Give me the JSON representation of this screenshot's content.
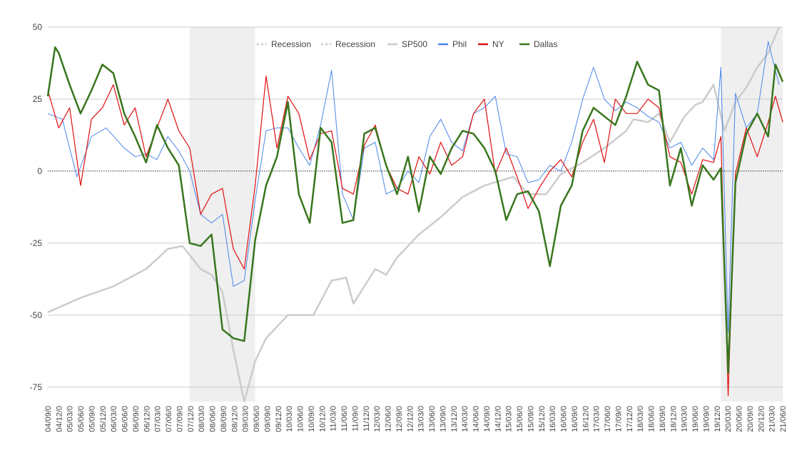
{
  "chart_data": {
    "type": "line",
    "title": "",
    "xlabel": "",
    "ylabel": "",
    "ylim": [
      -80,
      50
    ],
    "y_ticks": [
      50,
      25,
      0,
      -25,
      -50,
      -75
    ],
    "y_tick_labels": [
      "50",
      "25",
      "0",
      "-25",
      "-50",
      "-75"
    ],
    "grid": true,
    "legend_position": "top-right",
    "zero_line": "dotted",
    "x_start": "2004-09",
    "x_end": "2021-07",
    "x_tick_labels": [
      "04/09/0",
      "04/12/0",
      "05/03/0",
      "05/06/0",
      "05/09/0",
      "05/12/0",
      "06/03/0",
      "06/06/0",
      "06/09/0",
      "06/12/0",
      "07/03/0",
      "07/06/0",
      "07/09/0",
      "07/12/0",
      "08/03/0",
      "08/06/0",
      "08/09/0",
      "08/12/0",
      "09/03/0",
      "09/06/0",
      "09/09/0",
      "09/12/0",
      "10/03/0",
      "10/06/0",
      "10/09/0",
      "10/12/0",
      "11/03/0",
      "11/06/0",
      "11/09/0",
      "11/12/0",
      "12/03/0",
      "12/06/0",
      "12/09/0",
      "12/12/0",
      "13/03/0",
      "13/06/0",
      "13/09/0",
      "13/12/0",
      "14/03/0",
      "14/06/0",
      "14/09/0",
      "14/12/0",
      "15/03/0",
      "15/06/0",
      "15/09/0",
      "15/12/0",
      "16/03/0",
      "16/06/0",
      "16/09/0",
      "16/12/0",
      "17/03/0",
      "17/06/0",
      "17/09/0",
      "17/12/0",
      "18/03/0",
      "18/06/0",
      "18/09/0",
      "18/12/0",
      "19/03/0",
      "19/06/0",
      "19/09/0",
      "19/12/0",
      "20/03/0",
      "20/06/0",
      "20/09/0",
      "20/12/0",
      "21/03/0",
      "21/06/0"
    ],
    "recessions": [
      {
        "name": "Recession",
        "start": "2007-12",
        "end": "2009-06"
      },
      {
        "name": "Recession",
        "start": "2020-02",
        "end": "2021-07"
      }
    ],
    "series": [
      {
        "name": "SP500",
        "color": "#cccccc",
        "width": 2.5,
        "points": [
          [
            "2004-09",
            -49
          ],
          [
            "2005-06",
            -44
          ],
          [
            "2006-03",
            -40
          ],
          [
            "2006-12",
            -34
          ],
          [
            "2007-06",
            -27
          ],
          [
            "2007-10",
            -26
          ],
          [
            "2008-03",
            -34
          ],
          [
            "2008-06",
            -36
          ],
          [
            "2008-09",
            -42
          ],
          [
            "2008-12",
            -62
          ],
          [
            "2009-03",
            -80
          ],
          [
            "2009-06",
            -66
          ],
          [
            "2009-09",
            -58
          ],
          [
            "2010-03",
            -50
          ],
          [
            "2010-06",
            -50
          ],
          [
            "2010-10",
            -50
          ],
          [
            "2011-03",
            -38
          ],
          [
            "2011-07",
            -37
          ],
          [
            "2011-09",
            -46
          ],
          [
            "2012-03",
            -34
          ],
          [
            "2012-06",
            -36
          ],
          [
            "2012-09",
            -30
          ],
          [
            "2013-03",
            -22
          ],
          [
            "2013-09",
            -16
          ],
          [
            "2014-03",
            -9
          ],
          [
            "2014-09",
            -5
          ],
          [
            "2015-05",
            -2
          ],
          [
            "2015-09",
            -8
          ],
          [
            "2016-02",
            -8
          ],
          [
            "2016-06",
            -1
          ],
          [
            "2016-12",
            3
          ],
          [
            "2017-06",
            8
          ],
          [
            "2017-12",
            14
          ],
          [
            "2018-02",
            18
          ],
          [
            "2018-06",
            17
          ],
          [
            "2018-09",
            20
          ],
          [
            "2018-12",
            10
          ],
          [
            "2019-04",
            19
          ],
          [
            "2019-07",
            23
          ],
          [
            "2019-09",
            24
          ],
          [
            "2019-12",
            30
          ],
          [
            "2020-03",
            14
          ],
          [
            "2020-06",
            24
          ],
          [
            "2020-09",
            29
          ],
          [
            "2020-12",
            36
          ],
          [
            "2021-03",
            41
          ],
          [
            "2021-06",
            50
          ]
        ]
      },
      {
        "name": "Phil",
        "color": "#4a86e8",
        "width": 1,
        "points": [
          [
            "2004-09",
            20
          ],
          [
            "2005-01",
            18
          ],
          [
            "2005-05",
            -2
          ],
          [
            "2005-09",
            12
          ],
          [
            "2006-01",
            15
          ],
          [
            "2006-06",
            8
          ],
          [
            "2006-09",
            5
          ],
          [
            "2006-12",
            6
          ],
          [
            "2007-03",
            4
          ],
          [
            "2007-06",
            12
          ],
          [
            "2007-09",
            7
          ],
          [
            "2007-12",
            0
          ],
          [
            "2008-03",
            -15
          ],
          [
            "2008-06",
            -18
          ],
          [
            "2008-09",
            -15
          ],
          [
            "2008-12",
            -40
          ],
          [
            "2009-03",
            -38
          ],
          [
            "2009-06",
            -10
          ],
          [
            "2009-09",
            14
          ],
          [
            "2009-12",
            15
          ],
          [
            "2010-03",
            15
          ],
          [
            "2010-06",
            8
          ],
          [
            "2010-09",
            2
          ],
          [
            "2010-12",
            16
          ],
          [
            "2011-03",
            35
          ],
          [
            "2011-06",
            -8
          ],
          [
            "2011-09",
            -17
          ],
          [
            "2011-12",
            8
          ],
          [
            "2012-03",
            10
          ],
          [
            "2012-06",
            -8
          ],
          [
            "2012-09",
            -6
          ],
          [
            "2012-12",
            0
          ],
          [
            "2013-03",
            -4
          ],
          [
            "2013-06",
            12
          ],
          [
            "2013-09",
            18
          ],
          [
            "2013-12",
            10
          ],
          [
            "2014-03",
            7
          ],
          [
            "2014-06",
            20
          ],
          [
            "2014-09",
            22
          ],
          [
            "2014-12",
            26
          ],
          [
            "2015-03",
            6
          ],
          [
            "2015-06",
            5
          ],
          [
            "2015-09",
            -4
          ],
          [
            "2015-12",
            -3
          ],
          [
            "2016-03",
            2
          ],
          [
            "2016-06",
            0
          ],
          [
            "2016-09",
            10
          ],
          [
            "2016-12",
            25
          ],
          [
            "2017-03",
            36
          ],
          [
            "2017-06",
            25
          ],
          [
            "2017-09",
            21
          ],
          [
            "2017-12",
            24
          ],
          [
            "2018-03",
            22
          ],
          [
            "2018-06",
            19
          ],
          [
            "2018-09",
            17
          ],
          [
            "2018-12",
            8
          ],
          [
            "2019-03",
            10
          ],
          [
            "2019-06",
            2
          ],
          [
            "2019-09",
            8
          ],
          [
            "2019-12",
            4
          ],
          [
            "2020-02",
            36
          ],
          [
            "2020-04",
            -56
          ],
          [
            "2020-06",
            27
          ],
          [
            "2020-09",
            15
          ],
          [
            "2020-12",
            20
          ],
          [
            "2021-03",
            45
          ],
          [
            "2021-06",
            30
          ]
        ]
      },
      {
        "name": "NY",
        "color": "#e01010",
        "width": 1.2,
        "points": [
          [
            "2004-09",
            28
          ],
          [
            "2004-12",
            15
          ],
          [
            "2005-03",
            22
          ],
          [
            "2005-06",
            -5
          ],
          [
            "2005-09",
            18
          ],
          [
            "2005-12",
            22
          ],
          [
            "2006-03",
            30
          ],
          [
            "2006-06",
            16
          ],
          [
            "2006-09",
            22
          ],
          [
            "2006-12",
            5
          ],
          [
            "2007-03",
            15
          ],
          [
            "2007-06",
            25
          ],
          [
            "2007-09",
            14
          ],
          [
            "2007-12",
            8
          ],
          [
            "2008-03",
            -15
          ],
          [
            "2008-06",
            -8
          ],
          [
            "2008-09",
            -6
          ],
          [
            "2008-12",
            -27
          ],
          [
            "2009-03",
            -34
          ],
          [
            "2009-06",
            -5
          ],
          [
            "2009-09",
            33
          ],
          [
            "2009-12",
            8
          ],
          [
            "2010-03",
            26
          ],
          [
            "2010-06",
            20
          ],
          [
            "2010-09",
            4
          ],
          [
            "2010-12",
            13
          ],
          [
            "2011-03",
            14
          ],
          [
            "2011-06",
            -6
          ],
          [
            "2011-09",
            -8
          ],
          [
            "2011-12",
            9
          ],
          [
            "2012-03",
            16
          ],
          [
            "2012-06",
            2
          ],
          [
            "2012-09",
            -6
          ],
          [
            "2012-12",
            -8
          ],
          [
            "2013-03",
            5
          ],
          [
            "2013-06",
            -1
          ],
          [
            "2013-09",
            10
          ],
          [
            "2013-12",
            2
          ],
          [
            "2014-03",
            5
          ],
          [
            "2014-06",
            20
          ],
          [
            "2014-09",
            25
          ],
          [
            "2014-12",
            -1
          ],
          [
            "2015-03",
            8
          ],
          [
            "2015-06",
            -2
          ],
          [
            "2015-09",
            -13
          ],
          [
            "2015-12",
            -6
          ],
          [
            "2016-03",
            0
          ],
          [
            "2016-06",
            4
          ],
          [
            "2016-09",
            -2
          ],
          [
            "2016-12",
            10
          ],
          [
            "2017-03",
            18
          ],
          [
            "2017-06",
            3
          ],
          [
            "2017-09",
            25
          ],
          [
            "2017-12",
            20
          ],
          [
            "2018-03",
            20
          ],
          [
            "2018-06",
            25
          ],
          [
            "2018-09",
            22
          ],
          [
            "2018-12",
            5
          ],
          [
            "2019-03",
            3
          ],
          [
            "2019-06",
            -8
          ],
          [
            "2019-09",
            4
          ],
          [
            "2019-12",
            3
          ],
          [
            "2020-02",
            12
          ],
          [
            "2020-04",
            -78
          ],
          [
            "2020-06",
            -1
          ],
          [
            "2020-09",
            15
          ],
          [
            "2020-12",
            5
          ],
          [
            "2021-03",
            17
          ],
          [
            "2021-05",
            26
          ],
          [
            "2021-07",
            17
          ]
        ]
      },
      {
        "name": "Dallas",
        "color": "#38761d",
        "width": 2.5,
        "points": [
          [
            "2004-09",
            26
          ],
          [
            "2004-11",
            43
          ],
          [
            "2004-12",
            41
          ],
          [
            "2005-03",
            30
          ],
          [
            "2005-06",
            20
          ],
          [
            "2005-09",
            28
          ],
          [
            "2005-12",
            37
          ],
          [
            "2006-03",
            34
          ],
          [
            "2006-06",
            20
          ],
          [
            "2006-09",
            12
          ],
          [
            "2006-12",
            3
          ],
          [
            "2007-03",
            16
          ],
          [
            "2007-06",
            8
          ],
          [
            "2007-09",
            2
          ],
          [
            "2007-12",
            -25
          ],
          [
            "2008-03",
            -26
          ],
          [
            "2008-06",
            -22
          ],
          [
            "2008-09",
            -55
          ],
          [
            "2008-12",
            -58
          ],
          [
            "2009-03",
            -59
          ],
          [
            "2009-06",
            -24
          ],
          [
            "2009-09",
            -5
          ],
          [
            "2009-12",
            5
          ],
          [
            "2010-03",
            24
          ],
          [
            "2010-06",
            -8
          ],
          [
            "2010-09",
            -18
          ],
          [
            "2010-12",
            15
          ],
          [
            "2011-03",
            10
          ],
          [
            "2011-06",
            -18
          ],
          [
            "2011-09",
            -17
          ],
          [
            "2011-12",
            13
          ],
          [
            "2012-03",
            15
          ],
          [
            "2012-06",
            2
          ],
          [
            "2012-09",
            -8
          ],
          [
            "2012-12",
            5
          ],
          [
            "2013-03",
            -14
          ],
          [
            "2013-06",
            5
          ],
          [
            "2013-09",
            -1
          ],
          [
            "2013-12",
            8
          ],
          [
            "2014-03",
            14
          ],
          [
            "2014-06",
            13
          ],
          [
            "2014-09",
            8
          ],
          [
            "2014-12",
            0
          ],
          [
            "2015-03",
            -17
          ],
          [
            "2015-06",
            -8
          ],
          [
            "2015-09",
            -7
          ],
          [
            "2015-12",
            -14
          ],
          [
            "2016-03",
            -33
          ],
          [
            "2016-06",
            -12
          ],
          [
            "2016-09",
            -5
          ],
          [
            "2016-12",
            14
          ],
          [
            "2017-03",
            22
          ],
          [
            "2017-06",
            19
          ],
          [
            "2017-09",
            16
          ],
          [
            "2017-12",
            26
          ],
          [
            "2018-03",
            38
          ],
          [
            "2018-06",
            30
          ],
          [
            "2018-09",
            28
          ],
          [
            "2018-12",
            -5
          ],
          [
            "2019-03",
            8
          ],
          [
            "2019-06",
            -12
          ],
          [
            "2019-09",
            2
          ],
          [
            "2019-12",
            -3
          ],
          [
            "2020-02",
            1
          ],
          [
            "2020-04",
            -70
          ],
          [
            "2020-06",
            -4
          ],
          [
            "2020-09",
            13
          ],
          [
            "2020-12",
            20
          ],
          [
            "2021-03",
            12
          ],
          [
            "2021-05",
            37
          ],
          [
            "2021-07",
            31
          ]
        ]
      }
    ],
    "legend": [
      "Recession",
      "Recession",
      "SP500",
      "Phil",
      "NY",
      "Dallas"
    ]
  }
}
